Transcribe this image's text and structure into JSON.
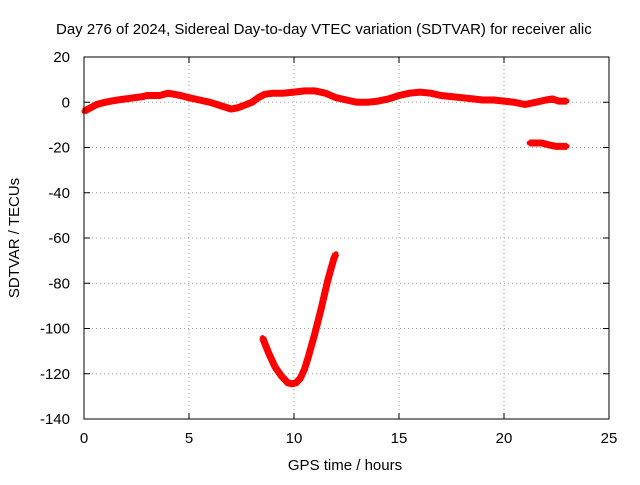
{
  "chart_data": {
    "type": "scatter",
    "title": "Day 276 of 2024, Sidereal Day-to-day VTEC variation (SDTVAR) for receiver alic",
    "xlabel": "GPS time / hours",
    "ylabel": "SDTVAR / TECUs",
    "xlim": [
      0,
      25
    ],
    "ylim": [
      -140,
      20
    ],
    "x_ticks": [
      0,
      5,
      10,
      15,
      20,
      25
    ],
    "y_ticks": [
      20,
      0,
      -20,
      -40,
      -60,
      -80,
      -100,
      -120,
      -140
    ],
    "grid": true,
    "colors": {
      "series": "#ff0000",
      "grid": "#a0a0a0",
      "axis": "#000000"
    },
    "series": [
      {
        "segments": [
          {
            "x": [
              0.0,
              0.2,
              0.4,
              0.6,
              0.8,
              1.0,
              1.3,
              1.6,
              2.0,
              2.4,
              2.8,
              3.0,
              3.3,
              3.6,
              4.0,
              4.3,
              4.6,
              5.0,
              5.5,
              6.0,
              6.5,
              7.0,
              7.3,
              7.6,
              8.0,
              8.3,
              8.6,
              9.0,
              9.5,
              10.0,
              10.5,
              11.0,
              11.5,
              12.0,
              12.5,
              13.0,
              13.5,
              14.0,
              14.5,
              15.0,
              15.5,
              16.0,
              16.5,
              17.0,
              17.5,
              18.0,
              18.5,
              19.0,
              19.5,
              20.0,
              20.5,
              21.0,
              21.5,
              22.0,
              22.3,
              22.6,
              23.0
            ],
            "y": [
              -4,
              -3,
              -2,
              -1,
              -0.5,
              0,
              0.5,
              1,
              1.5,
              2,
              2.5,
              3,
              3,
              3,
              4,
              3.5,
              3,
              2,
              1,
              0,
              -1.5,
              -3,
              -2.5,
              -1.5,
              0,
              2,
              3.5,
              4,
              4,
              4.5,
              5,
              5,
              4,
              2,
              1,
              0,
              0,
              0.5,
              1.5,
              3,
              4,
              4.5,
              4,
              3,
              2.5,
              2,
              1.5,
              1,
              1,
              0.5,
              0,
              -1,
              0,
              1,
              1.5,
              0.5,
              0.5
            ]
          },
          {
            "x": [
              21.2,
              21.5,
              21.8,
              22.0,
              22.2,
              22.5,
              22.8,
              23.0
            ],
            "y": [
              -18,
              -18,
              -18,
              -18.5,
              -19,
              -19.5,
              -19.5,
              -19.5
            ]
          },
          {
            "x": [
              8.5,
              8.8,
              9.1,
              9.4,
              9.7,
              9.9,
              10.1,
              10.3,
              10.5,
              10.7,
              11.0,
              11.3,
              11.6,
              11.9,
              12.0
            ],
            "y": [
              -104,
              -111,
              -117,
              -121,
              -124,
              -124.5,
              -124,
              -122,
              -118,
              -112,
              -102,
              -91,
              -79,
              -69,
              -67
            ]
          }
        ]
      }
    ]
  }
}
